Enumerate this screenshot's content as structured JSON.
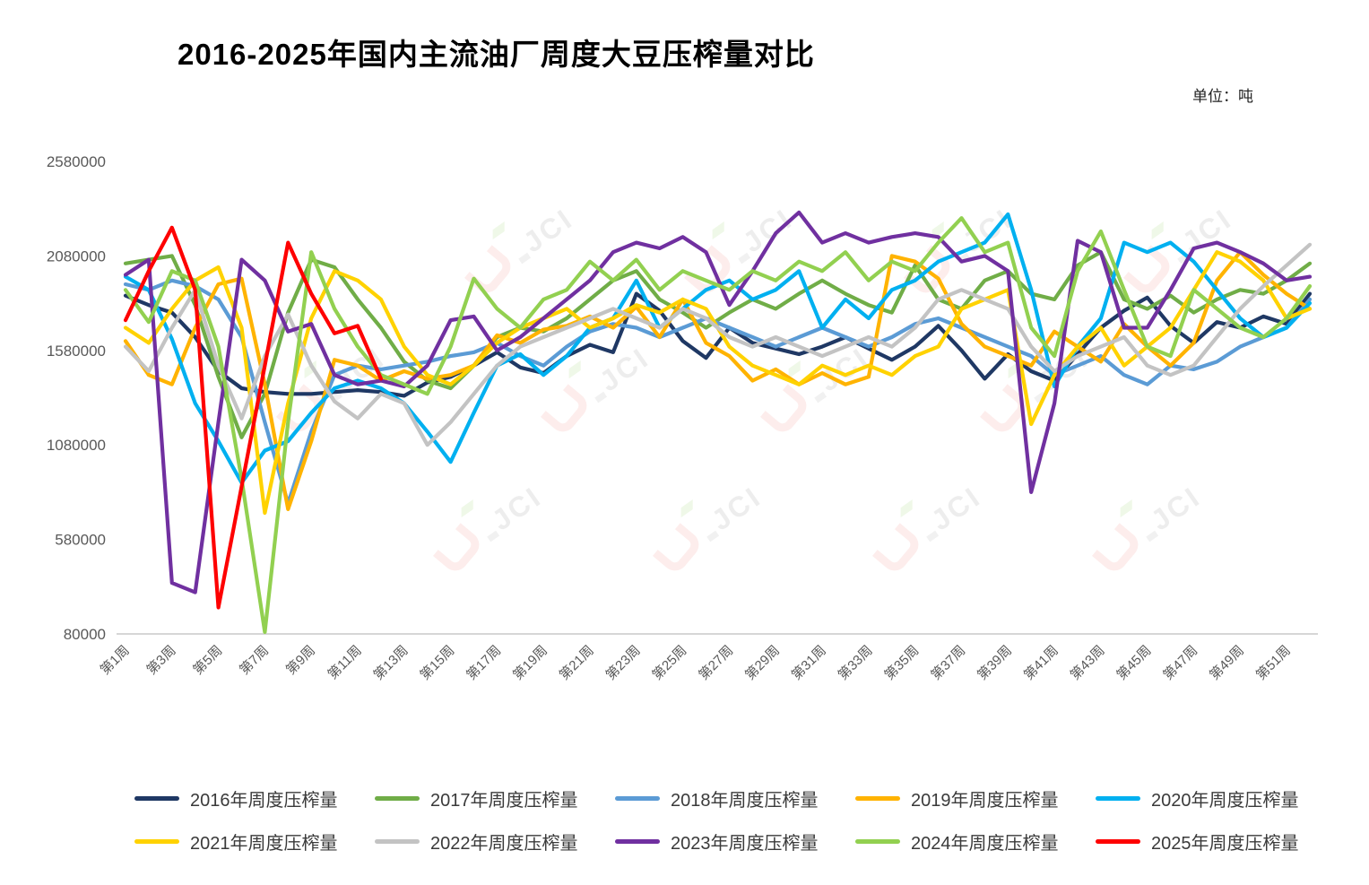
{
  "chart_data": {
    "type": "line",
    "title": "2016-2025年国内主流油厂周度大豆压榨量对比",
    "unit_label": "单位：吨",
    "watermark": "JCI",
    "xlabel": "",
    "ylabel": "",
    "ylim": [
      80000,
      2580000
    ],
    "weeks": 52,
    "grid": false,
    "legend_position": "bottom",
    "y_ticks": [
      2580000,
      2080000,
      1580000,
      1080000,
      580000,
      80000
    ],
    "x_tick_labels": [
      "第1周",
      "第3周",
      "第5周",
      "第7周",
      "第9周",
      "第11周",
      "第13周",
      "第15周",
      "第17周",
      "第19周",
      "第21周",
      "第23周",
      "第25周",
      "第27周",
      "第29周",
      "第31周",
      "第33周",
      "第35周",
      "第37周",
      "第39周",
      "第41周",
      "第43周",
      "第45周",
      "第47周",
      "第49周",
      "第51周"
    ],
    "series": [
      {
        "name": "2016年周度压榨量",
        "color": "#1F3864",
        "values": [
          1870000,
          1820000,
          1780000,
          1650000,
          1470000,
          1380000,
          1360000,
          1350000,
          1350000,
          1360000,
          1370000,
          1360000,
          1340000,
          1410000,
          1440000,
          1500000,
          1570000,
          1490000,
          1460000,
          1550000,
          1610000,
          1570000,
          1880000,
          1790000,
          1630000,
          1540000,
          1700000,
          1620000,
          1590000,
          1560000,
          1600000,
          1650000,
          1590000,
          1530000,
          1600000,
          1710000,
          1580000,
          1430000,
          1560000,
          1470000,
          1420000,
          1560000,
          1700000,
          1790000,
          1860000,
          1710000,
          1620000,
          1730000,
          1700000,
          1760000,
          1720000,
          1880000
        ]
      },
      {
        "name": "2017年周度压榨量",
        "color": "#70AD47",
        "values": [
          2040000,
          2060000,
          2080000,
          1820000,
          1440000,
          1120000,
          1350000,
          1780000,
          2060000,
          2020000,
          1850000,
          1700000,
          1520000,
          1420000,
          1380000,
          1500000,
          1650000,
          1700000,
          1680000,
          1750000,
          1850000,
          1950000,
          2000000,
          1850000,
          1780000,
          1700000,
          1780000,
          1850000,
          1800000,
          1880000,
          1950000,
          1880000,
          1820000,
          1780000,
          2030000,
          1850000,
          1800000,
          1950000,
          2000000,
          1880000,
          1850000,
          2030000,
          2100000,
          1850000,
          1800000,
          1870000,
          1780000,
          1850000,
          1900000,
          1880000,
          1950000,
          2040000
        ]
      },
      {
        "name": "2018年周度压榨量",
        "color": "#5B9BD5",
        "values": [
          1930000,
          1900000,
          1950000,
          1920000,
          1850000,
          1650000,
          1200000,
          770000,
          1150000,
          1450000,
          1500000,
          1480000,
          1500000,
          1520000,
          1550000,
          1570000,
          1620000,
          1550000,
          1500000,
          1600000,
          1680000,
          1720000,
          1700000,
          1650000,
          1700000,
          1750000,
          1700000,
          1650000,
          1600000,
          1650000,
          1700000,
          1650000,
          1600000,
          1650000,
          1720000,
          1750000,
          1700000,
          1650000,
          1600000,
          1550000,
          1450000,
          1500000,
          1550000,
          1450000,
          1400000,
          1500000,
          1480000,
          1520000,
          1600000,
          1650000,
          1700000,
          1850000
        ]
      },
      {
        "name": "2019年周度压榨量",
        "color": "#FFB300",
        "values": [
          1630000,
          1450000,
          1400000,
          1700000,
          1930000,
          1960000,
          1400000,
          740000,
          1100000,
          1530000,
          1500000,
          1420000,
          1470000,
          1430000,
          1450000,
          1500000,
          1660000,
          1620000,
          1690000,
          1710000,
          1760000,
          1700000,
          1810000,
          1650000,
          1850000,
          1620000,
          1550000,
          1420000,
          1480000,
          1400000,
          1460000,
          1400000,
          1440000,
          2080000,
          2050000,
          1960000,
          1720000,
          1600000,
          1550000,
          1500000,
          1680000,
          1600000,
          1520000,
          1720000,
          1600000,
          1500000,
          1620000,
          1950000,
          2100000,
          1980000,
          1880000,
          1800000
        ]
      },
      {
        "name": "2020年周度压榨量",
        "color": "#00B0F0",
        "values": [
          1970000,
          1900000,
          1640000,
          1300000,
          1100000,
          880000,
          1050000,
          1100000,
          1250000,
          1380000,
          1420000,
          1380000,
          1300000,
          1150000,
          990000,
          1250000,
          1500000,
          1560000,
          1450000,
          1550000,
          1700000,
          1750000,
          1950000,
          1700000,
          1800000,
          1900000,
          1950000,
          1850000,
          1900000,
          2000000,
          1700000,
          1850000,
          1750000,
          1900000,
          1950000,
          2050000,
          2100000,
          2150000,
          2300000,
          1900000,
          1390000,
          1600000,
          1750000,
          2150000,
          2100000,
          2150000,
          2050000,
          1900000,
          1750000,
          1650000,
          1700000,
          1830000
        ]
      },
      {
        "name": "2021年周度压榨量",
        "color": "#FFD200",
        "values": [
          1700000,
          1620000,
          1800000,
          1950000,
          2020000,
          1700000,
          720000,
          1300000,
          1750000,
          2000000,
          1950000,
          1850000,
          1600000,
          1450000,
          1400000,
          1500000,
          1620000,
          1700000,
          1750000,
          1800000,
          1700000,
          1750000,
          1820000,
          1780000,
          1850000,
          1800000,
          1600000,
          1500000,
          1450000,
          1400000,
          1500000,
          1450000,
          1500000,
          1450000,
          1550000,
          1600000,
          1800000,
          1850000,
          1900000,
          1190000,
          1450000,
          1600000,
          1700000,
          1500000,
          1600000,
          1700000,
          1900000,
          2100000,
          2050000,
          1950000,
          1750000,
          1800000
        ]
      },
      {
        "name": "2022年周度压榨量",
        "color": "#C3C3C3",
        "values": [
          1600000,
          1470000,
          1700000,
          1900000,
          1500000,
          1220000,
          1550000,
          1770000,
          1500000,
          1310000,
          1220000,
          1350000,
          1300000,
          1080000,
          1200000,
          1350000,
          1500000,
          1600000,
          1650000,
          1700000,
          1750000,
          1800000,
          1750000,
          1700000,
          1800000,
          1750000,
          1650000,
          1600000,
          1650000,
          1600000,
          1550000,
          1600000,
          1650000,
          1600000,
          1700000,
          1850000,
          1900000,
          1850000,
          1800000,
          1600000,
          1470000,
          1550000,
          1600000,
          1650000,
          1500000,
          1450000,
          1500000,
          1650000,
          1800000,
          1920000,
          2030000,
          2140000
        ]
      },
      {
        "name": "2023年周度压榨量",
        "color": "#7030A0",
        "values": [
          1980000,
          2060000,
          350000,
          300000,
          1200000,
          2060000,
          1950000,
          1680000,
          1720000,
          1450000,
          1400000,
          1420000,
          1390000,
          1500000,
          1740000,
          1760000,
          1580000,
          1650000,
          1750000,
          1850000,
          1950000,
          2100000,
          2150000,
          2120000,
          2180000,
          2100000,
          1820000,
          2000000,
          2200000,
          2310000,
          2150000,
          2200000,
          2150000,
          2180000,
          2200000,
          2180000,
          2050000,
          2080000,
          2000000,
          830000,
          1300000,
          2160000,
          2100000,
          1700000,
          1700000,
          1900000,
          2120000,
          2150000,
          2100000,
          2040000,
          1950000,
          1970000
        ]
      },
      {
        "name": "2024年周度压榨量",
        "color": "#92D050",
        "values": [
          1900000,
          1730000,
          2000000,
          1950000,
          1600000,
          900000,
          90000,
          1200000,
          2100000,
          1800000,
          1600000,
          1450000,
          1400000,
          1350000,
          1600000,
          1960000,
          1800000,
          1700000,
          1850000,
          1900000,
          2050000,
          1950000,
          2060000,
          1900000,
          2000000,
          1950000,
          1900000,
          2000000,
          1950000,
          2050000,
          2000000,
          2100000,
          1950000,
          2050000,
          2000000,
          2150000,
          2280000,
          2100000,
          2150000,
          1700000,
          1550000,
          2000000,
          2210000,
          1900000,
          1600000,
          1550000,
          1900000,
          1800000,
          1700000,
          1650000,
          1750000,
          1920000
        ]
      },
      {
        "name": "2025年周度压榨量",
        "color": "#FE0000",
        "values": [
          1740000,
          2000000,
          2230000,
          1900000,
          220000,
          860000,
          1500000,
          2150000,
          1880000,
          1670000,
          1710000,
          1430000
        ]
      }
    ]
  }
}
